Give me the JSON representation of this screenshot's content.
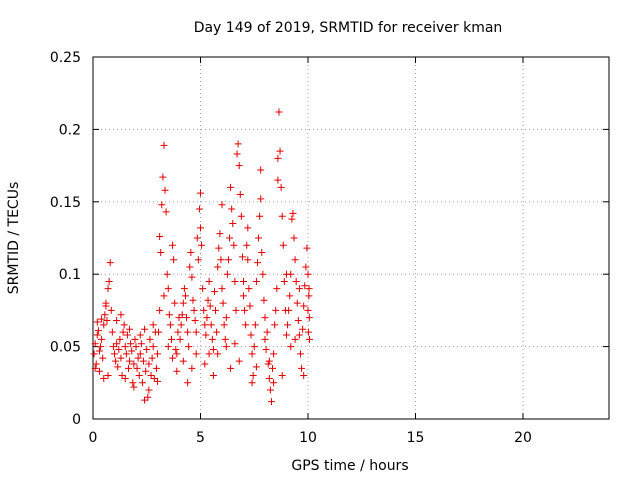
{
  "chart_data": {
    "type": "scatter",
    "title": "Day 149 of 2019, SRMTID for receiver kman",
    "xlabel": "GPS time / hours",
    "ylabel": "SRMTID / TECUs",
    "xlim": [
      0,
      24
    ],
    "ylim": [
      0,
      0.25
    ],
    "x_ticks": [
      0,
      5,
      10,
      15,
      20
    ],
    "x_tick_labels": [
      "0",
      "5",
      "10",
      "15",
      "20"
    ],
    "y_ticks": [
      0,
      0.05,
      0.1,
      0.15,
      0.2,
      0.25
    ],
    "y_tick_labels": [
      "0",
      "0.05",
      "0.1",
      "0.15",
      "0.2",
      "0.25"
    ],
    "grid": true,
    "marker": "plus",
    "series": [
      {
        "name": "SRMTID",
        "color": "#e00000",
        "points": [
          [
            0.05,
            0.045
          ],
          [
            0.1,
            0.052
          ],
          [
            0.15,
            0.038
          ],
          [
            0.2,
            0.058
          ],
          [
            0.25,
            0.061
          ],
          [
            0.3,
            0.047
          ],
          [
            0.35,
            0.05
          ],
          [
            0.4,
            0.055
          ],
          [
            0.45,
            0.042
          ],
          [
            0.5,
            0.065
          ],
          [
            0.55,
            0.072
          ],
          [
            0.6,
            0.08
          ],
          [
            0.65,
            0.068
          ],
          [
            0.7,
            0.09
          ],
          [
            0.75,
            0.095
          ],
          [
            0.8,
            0.108
          ],
          [
            0.85,
            0.075
          ],
          [
            0.9,
            0.06
          ],
          [
            0.95,
            0.05
          ],
          [
            1.0,
            0.045
          ],
          [
            0.1,
            0.035
          ],
          [
            0.3,
            0.033
          ],
          [
            0.5,
            0.028
          ],
          [
            0.7,
            0.03
          ],
          [
            0.2,
            0.067
          ],
          [
            0.6,
            0.078
          ],
          [
            0.4,
            0.069
          ],
          [
            1.05,
            0.04
          ],
          [
            1.1,
            0.052
          ],
          [
            1.15,
            0.036
          ],
          [
            1.2,
            0.048
          ],
          [
            1.25,
            0.055
          ],
          [
            1.3,
            0.042
          ],
          [
            1.35,
            0.03
          ],
          [
            1.4,
            0.06
          ],
          [
            1.45,
            0.065
          ],
          [
            1.5,
            0.05
          ],
          [
            1.55,
            0.045
          ],
          [
            1.6,
            0.058
          ],
          [
            1.65,
            0.035
          ],
          [
            1.7,
            0.04
          ],
          [
            1.75,
            0.052
          ],
          [
            1.8,
            0.047
          ],
          [
            1.85,
            0.025
          ],
          [
            1.9,
            0.038
          ],
          [
            1.95,
            0.055
          ],
          [
            2.0,
            0.05
          ],
          [
            1.1,
            0.068
          ],
          [
            1.3,
            0.072
          ],
          [
            1.5,
            0.028
          ],
          [
            1.7,
            0.062
          ],
          [
            1.9,
            0.022
          ],
          [
            2.05,
            0.035
          ],
          [
            2.1,
            0.042
          ],
          [
            2.15,
            0.03
          ],
          [
            2.2,
            0.045
          ],
          [
            2.25,
            0.052
          ],
          [
            2.3,
            0.025
          ],
          [
            2.35,
            0.04
          ],
          [
            2.4,
            0.013
          ],
          [
            2.45,
            0.033
          ],
          [
            2.5,
            0.048
          ],
          [
            2.55,
            0.015
          ],
          [
            2.6,
            0.038
          ],
          [
            2.65,
            0.055
          ],
          [
            2.7,
            0.03
          ],
          [
            2.75,
            0.042
          ],
          [
            2.8,
            0.05
          ],
          [
            2.85,
            0.028
          ],
          [
            2.9,
            0.06
          ],
          [
            2.95,
            0.035
          ],
          [
            3.0,
            0.045
          ],
          [
            2.2,
            0.058
          ],
          [
            2.4,
            0.062
          ],
          [
            2.6,
            0.02
          ],
          [
            2.8,
            0.065
          ],
          [
            3.0,
            0.026
          ],
          [
            3.05,
            0.06
          ],
          [
            3.1,
            0.126
          ],
          [
            3.15,
            0.115
          ],
          [
            3.2,
            0.148
          ],
          [
            3.25,
            0.167
          ],
          [
            3.3,
            0.189
          ],
          [
            3.35,
            0.158
          ],
          [
            3.4,
            0.143
          ],
          [
            3.45,
            0.1
          ],
          [
            3.5,
            0.09
          ],
          [
            3.55,
            0.072
          ],
          [
            3.6,
            0.065
          ],
          [
            3.65,
            0.055
          ],
          [
            3.7,
            0.12
          ],
          [
            3.75,
            0.11
          ],
          [
            3.8,
            0.08
          ],
          [
            3.85,
            0.048
          ],
          [
            3.9,
            0.045
          ],
          [
            3.95,
            0.06
          ],
          [
            4.0,
            0.07
          ],
          [
            3.1,
            0.075
          ],
          [
            3.3,
            0.085
          ],
          [
            3.5,
            0.05
          ],
          [
            3.7,
            0.042
          ],
          [
            3.9,
            0.033
          ],
          [
            4.05,
            0.055
          ],
          [
            4.1,
            0.065
          ],
          [
            4.15,
            0.072
          ],
          [
            4.2,
            0.08
          ],
          [
            4.25,
            0.09
          ],
          [
            4.3,
            0.085
          ],
          [
            4.35,
            0.07
          ],
          [
            4.4,
            0.06
          ],
          [
            4.45,
            0.05
          ],
          [
            4.5,
            0.105
          ],
          [
            4.55,
            0.115
          ],
          [
            4.6,
            0.098
          ],
          [
            4.65,
            0.082
          ],
          [
            4.7,
            0.075
          ],
          [
            4.75,
            0.068
          ],
          [
            4.8,
            0.06
          ],
          [
            4.85,
            0.125
          ],
          [
            4.9,
            0.11
          ],
          [
            4.95,
            0.145
          ],
          [
            5.0,
            0.156
          ],
          [
            4.2,
            0.04
          ],
          [
            4.4,
            0.025
          ],
          [
            4.6,
            0.035
          ],
          [
            4.8,
            0.045
          ],
          [
            5.0,
            0.132
          ],
          [
            5.05,
            0.12
          ],
          [
            5.1,
            0.09
          ],
          [
            5.15,
            0.075
          ],
          [
            5.2,
            0.065
          ],
          [
            5.25,
            0.058
          ],
          [
            5.3,
            0.07
          ],
          [
            5.35,
            0.082
          ],
          [
            5.4,
            0.095
          ],
          [
            5.45,
            0.078
          ],
          [
            5.5,
            0.065
          ],
          [
            5.55,
            0.055
          ],
          [
            5.6,
            0.048
          ],
          [
            5.65,
            0.088
          ],
          [
            5.7,
            0.075
          ],
          [
            5.75,
            0.06
          ],
          [
            5.8,
            0.105
          ],
          [
            5.85,
            0.118
          ],
          [
            5.9,
            0.128
          ],
          [
            5.95,
            0.11
          ],
          [
            6.0,
            0.09
          ],
          [
            5.2,
            0.038
          ],
          [
            5.4,
            0.045
          ],
          [
            5.6,
            0.03
          ],
          [
            5.8,
            0.045
          ],
          [
            6.0,
            0.148
          ],
          [
            6.05,
            0.08
          ],
          [
            6.1,
            0.065
          ],
          [
            6.15,
            0.055
          ],
          [
            6.2,
            0.07
          ],
          [
            6.25,
            0.1
          ],
          [
            6.3,
            0.11
          ],
          [
            6.35,
            0.125
          ],
          [
            6.4,
            0.16
          ],
          [
            6.45,
            0.145
          ],
          [
            6.5,
            0.135
          ],
          [
            6.55,
            0.12
          ],
          [
            6.6,
            0.095
          ],
          [
            6.65,
            0.075
          ],
          [
            6.7,
            0.183
          ],
          [
            6.75,
            0.19
          ],
          [
            6.8,
            0.175
          ],
          [
            6.85,
            0.155
          ],
          [
            6.9,
            0.14
          ],
          [
            6.95,
            0.112
          ],
          [
            7.0,
            0.095
          ],
          [
            6.2,
            0.05
          ],
          [
            6.4,
            0.035
          ],
          [
            6.6,
            0.052
          ],
          [
            6.8,
            0.04
          ],
          [
            7.0,
            0.085
          ],
          [
            7.05,
            0.075
          ],
          [
            7.1,
            0.065
          ],
          [
            7.15,
            0.12
          ],
          [
            7.2,
            0.11
          ],
          [
            7.25,
            0.09
          ],
          [
            7.3,
            0.078
          ],
          [
            7.35,
            0.058
          ],
          [
            7.4,
            0.045
          ],
          [
            7.45,
            0.03
          ],
          [
            7.5,
            0.05
          ],
          [
            7.55,
            0.065
          ],
          [
            7.6,
            0.095
          ],
          [
            7.65,
            0.108
          ],
          [
            7.7,
            0.125
          ],
          [
            7.75,
            0.14
          ],
          [
            7.8,
            0.152
          ],
          [
            7.85,
            0.115
          ],
          [
            7.9,
            0.1
          ],
          [
            7.95,
            0.082
          ],
          [
            8.0,
            0.07
          ],
          [
            7.2,
            0.132
          ],
          [
            7.4,
            0.025
          ],
          [
            7.6,
            0.036
          ],
          [
            7.8,
            0.172
          ],
          [
            8.0,
            0.055
          ],
          [
            8.05,
            0.048
          ],
          [
            8.1,
            0.06
          ],
          [
            8.15,
            0.038
          ],
          [
            8.2,
            0.028
          ],
          [
            8.25,
            0.02
          ],
          [
            8.3,
            0.012
          ],
          [
            8.35,
            0.035
          ],
          [
            8.4,
            0.045
          ],
          [
            8.45,
            0.065
          ],
          [
            8.5,
            0.075
          ],
          [
            8.55,
            0.09
          ],
          [
            8.6,
            0.18
          ],
          [
            8.65,
            0.212
          ],
          [
            8.7,
            0.185
          ],
          [
            8.75,
            0.16
          ],
          [
            8.8,
            0.14
          ],
          [
            8.85,
            0.12
          ],
          [
            8.9,
            0.095
          ],
          [
            8.95,
            0.075
          ],
          [
            9.0,
            0.058
          ],
          [
            8.2,
            0.04
          ],
          [
            8.4,
            0.025
          ],
          [
            8.6,
            0.165
          ],
          [
            8.8,
            0.03
          ],
          [
            9.0,
            0.1
          ],
          [
            9.05,
            0.065
          ],
          [
            9.1,
            0.075
          ],
          [
            9.15,
            0.085
          ],
          [
            9.2,
            0.1
          ],
          [
            9.25,
            0.138
          ],
          [
            9.3,
            0.142
          ],
          [
            9.35,
            0.125
          ],
          [
            9.4,
            0.11
          ],
          [
            9.45,
            0.095
          ],
          [
            9.5,
            0.08
          ],
          [
            9.55,
            0.068
          ],
          [
            9.6,
            0.058
          ],
          [
            9.65,
            0.045
          ],
          [
            9.7,
            0.035
          ],
          [
            9.75,
            0.062
          ],
          [
            9.8,
            0.078
          ],
          [
            9.85,
            0.092
          ],
          [
            9.9,
            0.105
          ],
          [
            9.95,
            0.118
          ],
          [
            10.0,
            0.1
          ],
          [
            9.2,
            0.05
          ],
          [
            9.4,
            0.055
          ],
          [
            9.6,
            0.09
          ],
          [
            9.8,
            0.03
          ],
          [
            10.0,
            0.075
          ],
          [
            10.02,
            0.06
          ],
          [
            10.04,
            0.085
          ],
          [
            10.05,
            0.09
          ],
          [
            10.06,
            0.07
          ],
          [
            10.07,
            0.055
          ]
        ]
      }
    ]
  }
}
